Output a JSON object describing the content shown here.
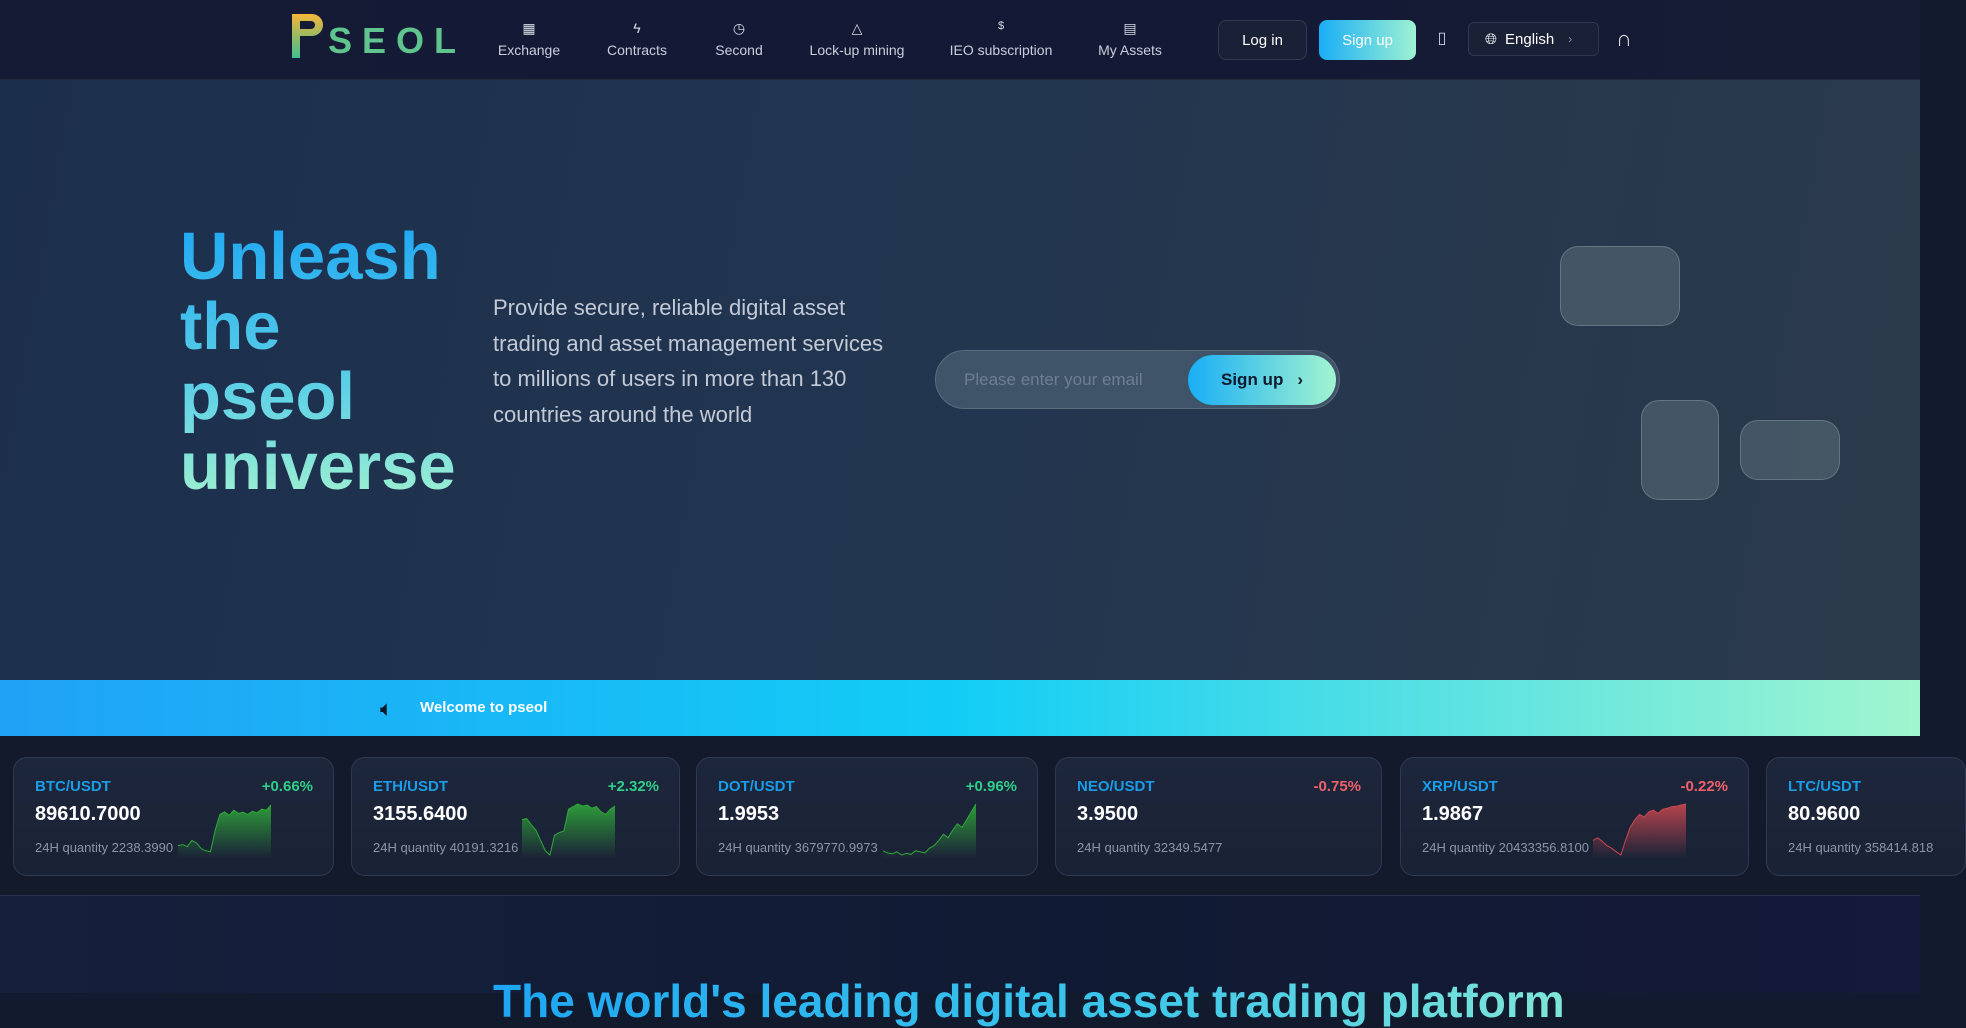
{
  "header": {
    "logo_text": "SEOL",
    "nav": [
      {
        "label": "Exchange",
        "icon": "bar-chart-icon"
      },
      {
        "label": "Contracts",
        "icon": "lightning-icon"
      },
      {
        "label": "Second",
        "icon": "clock-icon"
      },
      {
        "label": "Lock-up mining",
        "icon": "flask-icon"
      },
      {
        "label": "IEO subscription",
        "icon": "dollar-icon"
      },
      {
        "label": "My Assets",
        "icon": "wallet-icon"
      }
    ],
    "login_label": "Log in",
    "signup_label": "Sign up",
    "language": "English"
  },
  "hero": {
    "title_lines": [
      "Unleash",
      "the",
      "pseol",
      "universe"
    ],
    "description": "Provide secure, reliable digital asset trading and asset management services to millions of users in more than 130 countries around the world",
    "email_placeholder": "Please enter your email",
    "signup_label": "Sign up"
  },
  "banner": {
    "text": "Welcome to pseol"
  },
  "colors": {
    "up": "#2ecf8a",
    "down": "#f0616d",
    "pair": "#1a9de8",
    "accent_start": "#19aef5",
    "accent_end": "#9ef2d2"
  },
  "tickers": [
    {
      "pair": "BTC/USDT",
      "change": "+0.66%",
      "price": "89610.7000",
      "qty_label": "24H quantity",
      "qty": "2238.3990",
      "dir": "up",
      "spark": [
        20,
        22,
        18,
        30,
        25,
        14,
        10,
        8,
        50,
        80,
        85,
        78,
        88,
        82,
        84,
        80,
        86,
        83,
        90,
        88,
        98
      ]
    },
    {
      "pair": "ETH/USDT",
      "change": "+2.32%",
      "price": "3155.6400",
      "qty_label": "24H quantity",
      "qty": "40191.3216",
      "dir": "up",
      "spark": [
        70,
        72,
        60,
        50,
        30,
        10,
        2,
        40,
        45,
        48,
        90,
        95,
        100,
        96,
        98,
        92,
        95,
        85,
        80,
        90,
        96
      ]
    },
    {
      "pair": "DOT/USDT",
      "change": "+0.96%",
      "price": "1.9953",
      "qty_label": "24H quantity",
      "qty": "3679770.9973",
      "dir": "up",
      "spark": [
        10,
        6,
        4,
        8,
        2,
        5,
        3,
        10,
        8,
        6,
        15,
        20,
        30,
        42,
        35,
        50,
        62,
        55,
        70,
        85,
        100
      ]
    },
    {
      "pair": "NEO/USDT",
      "change": "-0.75%",
      "price": "3.9500",
      "qty_label": "24H quantity",
      "qty": "32349.5477",
      "dir": "down",
      "spark": []
    },
    {
      "pair": "XRP/USDT",
      "change": "-0.22%",
      "price": "1.9867",
      "qty_label": "24H quantity",
      "qty": "20433356.8100",
      "dir": "down",
      "spark": [
        30,
        35,
        28,
        20,
        15,
        8,
        2,
        30,
        55,
        70,
        80,
        75,
        85,
        88,
        82,
        90,
        92,
        95,
        96,
        98,
        100
      ]
    },
    {
      "pair": "LTC/USDT",
      "change": "",
      "price": "80.9600",
      "qty_label": "24H quantity",
      "qty": "358414.818",
      "dir": "up",
      "spark": []
    }
  ],
  "section": {
    "title": "The world's leading digital asset trading platform"
  }
}
